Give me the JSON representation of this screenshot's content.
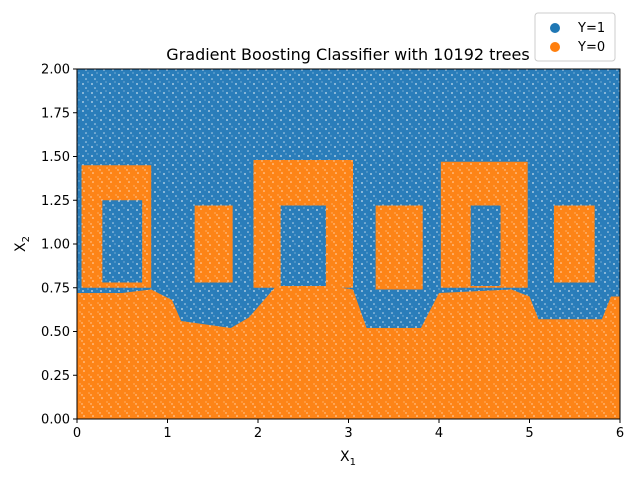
{
  "chart_data": {
    "type": "scatter",
    "title": "Gradient Boosting Classifier with 10192 trees",
    "xlabel": "X",
    "xlabel_sub": "1",
    "ylabel": "X",
    "ylabel_sub": "2",
    "xlim": [
      0,
      6
    ],
    "ylim": [
      0,
      2
    ],
    "x_ticks": [
      "0",
      "1",
      "2",
      "3",
      "4",
      "5",
      "6"
    ],
    "y_ticks": [
      "0.00",
      "0.25",
      "0.50",
      "0.75",
      "1.00",
      "1.25",
      "1.50",
      "1.75",
      "2.00"
    ],
    "grid": false,
    "legend_position": "top-right",
    "series": [
      {
        "name": "Y=1",
        "color": "#1f77b4"
      },
      {
        "name": "Y=0",
        "color": "#ff7f0e"
      }
    ],
    "regions": {
      "y0_low_boundary": [
        [
          0.0,
          0.72
        ],
        [
          0.5,
          0.72
        ],
        [
          0.82,
          0.74
        ],
        [
          1.05,
          0.68
        ],
        [
          1.15,
          0.56
        ],
        [
          1.7,
          0.52
        ],
        [
          1.9,
          0.58
        ],
        [
          2.2,
          0.76
        ],
        [
          2.8,
          0.76
        ],
        [
          3.05,
          0.74
        ],
        [
          3.2,
          0.52
        ],
        [
          3.55,
          0.52
        ],
        [
          3.8,
          0.52
        ],
        [
          4.0,
          0.72
        ],
        [
          4.8,
          0.74
        ],
        [
          5.0,
          0.7
        ],
        [
          5.1,
          0.57
        ],
        [
          5.8,
          0.57
        ],
        [
          5.9,
          0.7
        ],
        [
          6.0,
          0.7
        ]
      ],
      "y0_rings": [
        {
          "outer": [
            0.05,
            0.82,
            0.75,
            1.45
          ],
          "inner": [
            0.28,
            0.72,
            0.78,
            1.25
          ]
        },
        {
          "outer": [
            1.95,
            3.05,
            0.75,
            1.48
          ],
          "inner": [
            2.25,
            2.75,
            0.76,
            1.22
          ]
        },
        {
          "outer": [
            4.02,
            4.98,
            0.75,
            1.47
          ],
          "inner": [
            4.35,
            4.68,
            0.76,
            1.22
          ]
        }
      ],
      "y0_blobs": [
        [
          1.3,
          1.72,
          0.78,
          1.22
        ],
        [
          3.3,
          3.82,
          0.74,
          1.22
        ],
        [
          5.27,
          5.72,
          0.78,
          1.22
        ]
      ]
    }
  }
}
